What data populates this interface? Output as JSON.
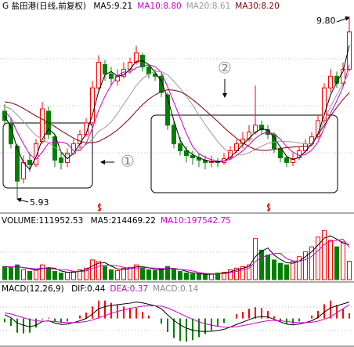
{
  "chart_data": [
    {
      "type": "candlestick",
      "title": "G 盐田港(日线,前复权)",
      "high_label": "9.80",
      "low_label": "5.93",
      "annotations": [
        "①",
        "②"
      ],
      "ylim": [
        5.85,
        9.95
      ],
      "up_color": "#ff0000",
      "down_color": "#008000",
      "open": [
        7.8,
        7.55,
        7.05,
        6.35,
        6.75,
        6.65,
        7.15,
        7.8,
        7.25,
        6.8,
        6.7,
        6.9,
        7.1,
        7.3,
        7.55,
        8.3,
        8.8,
        8.6,
        8.45,
        8.55,
        8.7,
        8.85,
        9.0,
        8.75,
        8.6,
        8.55,
        8.15,
        7.5,
        7.1,
        6.95,
        6.85,
        6.8,
        6.75,
        6.7,
        6.72,
        6.7,
        6.8,
        6.95,
        7.1,
        7.2,
        7.35,
        7.5,
        7.4,
        7.3,
        7.0,
        6.8,
        6.7,
        6.8,
        6.95,
        7.1,
        7.25,
        7.6,
        8.3,
        8.55,
        8.4,
        8.7
      ],
      "high": [
        7.95,
        7.65,
        7.1,
        6.85,
        6.9,
        7.2,
        8.0,
        7.9,
        7.3,
        6.95,
        7.0,
        7.2,
        7.4,
        7.65,
        8.45,
        9.0,
        8.9,
        8.75,
        8.7,
        8.85,
        8.95,
        9.2,
        9.05,
        8.8,
        8.7,
        8.6,
        8.2,
        7.6,
        7.25,
        7.05,
        6.95,
        6.9,
        6.85,
        6.85,
        6.8,
        6.9,
        7.05,
        7.2,
        7.35,
        7.5,
        8.35,
        7.6,
        7.5,
        7.35,
        7.05,
        6.85,
        6.9,
        7.05,
        7.2,
        7.35,
        7.7,
        8.4,
        8.7,
        8.65,
        8.85,
        9.8
      ],
      "low": [
        7.5,
        7.0,
        5.93,
        6.25,
        6.5,
        6.6,
        7.1,
        7.2,
        6.6,
        6.55,
        6.6,
        6.85,
        7.0,
        7.25,
        7.5,
        8.2,
        8.45,
        8.35,
        8.35,
        8.5,
        8.6,
        8.8,
        8.65,
        8.5,
        8.45,
        8.1,
        7.4,
        7.0,
        6.85,
        6.7,
        6.65,
        6.6,
        6.55,
        6.6,
        6.6,
        6.65,
        6.75,
        6.9,
        7.0,
        7.15,
        7.3,
        7.3,
        7.2,
        6.9,
        6.7,
        6.6,
        6.62,
        6.75,
        6.9,
        7.05,
        7.2,
        7.55,
        8.2,
        8.3,
        8.35,
        8.65
      ],
      "close": [
        7.6,
        7.1,
        6.3,
        6.7,
        6.65,
        7.1,
        7.85,
        7.3,
        6.75,
        6.7,
        6.9,
        7.1,
        7.3,
        7.55,
        8.3,
        8.85,
        8.6,
        8.5,
        8.55,
        8.7,
        8.85,
        9.05,
        8.75,
        8.6,
        8.55,
        8.2,
        7.5,
        7.1,
        6.95,
        6.85,
        6.8,
        6.75,
        6.7,
        6.72,
        6.7,
        6.78,
        6.95,
        7.1,
        7.2,
        7.35,
        7.5,
        7.4,
        7.3,
        7.0,
        6.8,
        6.7,
        6.78,
        6.95,
        7.1,
        7.25,
        7.6,
        8.3,
        8.55,
        8.4,
        8.7,
        9.5
      ],
      "series": [
        {
          "name": "MA5:9.21",
          "color": "#000000",
          "values": [
            7.7,
            7.45,
            7.0,
            6.7,
            6.55,
            6.82,
            7.2,
            7.42,
            7.3,
            6.92,
            6.78,
            6.9,
            7.1,
            7.32,
            7.72,
            8.23,
            8.58,
            8.65,
            8.55,
            8.58,
            8.7,
            8.87,
            8.88,
            8.8,
            8.63,
            8.45,
            8.08,
            7.6,
            7.18,
            6.97,
            6.87,
            6.8,
            6.75,
            6.72,
            6.71,
            6.73,
            6.81,
            6.94,
            7.08,
            7.22,
            7.35,
            7.42,
            7.4,
            7.23,
            7.03,
            6.83,
            6.76,
            6.81,
            6.94,
            7.1,
            7.32,
            7.72,
            8.15,
            8.42,
            8.65,
            9.21
          ]
        },
        {
          "name": "MA10:8.80",
          "color": "#cc00cc",
          "values": [
            7.8,
            7.65,
            7.35,
            7.1,
            6.87,
            6.77,
            6.92,
            7.12,
            7.13,
            7.14,
            7.1,
            6.95,
            6.95,
            7.11,
            7.43,
            7.82,
            8.12,
            8.36,
            8.56,
            8.64,
            8.64,
            8.73,
            8.78,
            8.79,
            8.76,
            8.63,
            8.32,
            7.99,
            7.66,
            7.32,
            7.04,
            6.89,
            6.81,
            6.76,
            6.73,
            6.73,
            6.77,
            6.85,
            6.95,
            7.08,
            7.22,
            7.31,
            7.35,
            7.31,
            7.2,
            7.04,
            6.92,
            6.85,
            6.87,
            6.96,
            7.14,
            7.44,
            7.76,
            8.02,
            8.32,
            8.8
          ]
        },
        {
          "name": "MA20:8.61",
          "color": "#999999",
          "values": [
            7.9,
            7.85,
            7.72,
            7.58,
            7.42,
            7.28,
            7.2,
            7.12,
            7.02,
            6.93,
            6.86,
            6.9,
            7.0,
            7.08,
            7.2,
            7.37,
            7.45,
            7.57,
            7.75,
            7.95,
            8.15,
            8.35,
            8.5,
            8.6,
            8.65,
            8.65,
            8.58,
            8.44,
            8.29,
            8.12,
            7.93,
            7.72,
            7.51,
            7.33,
            7.15,
            7.0,
            6.91,
            6.87,
            6.86,
            6.91,
            6.98,
            7.05,
            7.11,
            7.14,
            7.15,
            7.15,
            7.14,
            7.12,
            7.1,
            7.09,
            7.3,
            7.6,
            7.9,
            8.15,
            8.4,
            8.61
          ]
        },
        {
          "name": "MA30:8.20",
          "color": "#800000",
          "values": [
            8.0,
            7.98,
            7.93,
            7.86,
            7.78,
            7.7,
            7.63,
            7.55,
            7.47,
            7.38,
            7.3,
            7.22,
            7.16,
            7.12,
            7.12,
            7.15,
            7.22,
            7.3,
            7.4,
            7.52,
            7.65,
            7.8,
            7.94,
            8.06,
            8.15,
            8.22,
            8.26,
            8.25,
            8.22,
            8.15,
            8.05,
            7.94,
            7.82,
            7.7,
            7.58,
            7.45,
            7.33,
            7.22,
            7.12,
            7.04,
            6.98,
            6.96,
            6.96,
            6.98,
            7.0,
            7.02,
            7.03,
            7.04,
            7.05,
            7.06,
            7.3,
            7.5,
            7.7,
            7.88,
            8.05,
            8.2
          ]
        }
      ]
    },
    {
      "type": "volume",
      "title": "VOLUME:111952.53",
      "ylim": [
        0,
        320000
      ],
      "values": [
        80000,
        70000,
        90000,
        60000,
        50000,
        60000,
        90000,
        70000,
        50000,
        40000,
        45000,
        50000,
        60000,
        70000,
        120000,
        110000,
        80000,
        60000,
        55000,
        70000,
        75000,
        90000,
        70000,
        60000,
        55000,
        65000,
        80000,
        60000,
        50000,
        40000,
        35000,
        35000,
        30000,
        35000,
        40000,
        45000,
        60000,
        70000,
        80000,
        90000,
        250000,
        180000,
        150000,
        120000,
        100000,
        90000,
        110000,
        140000,
        170000,
        200000,
        260000,
        300000,
        240000,
        200000,
        230000,
        111952.53
      ],
      "series": [
        {
          "name": "MA5:214469.22",
          "color": "#000000",
          "values": [
            80000,
            75000,
            80000,
            73000,
            67000,
            57000,
            67000,
            73000,
            70000,
            53000,
            45000,
            45000,
            52000,
            60000,
            83000,
            100000,
            103000,
            83000,
            65000,
            62000,
            67000,
            78000,
            78000,
            73000,
            62000,
            60000,
            67000,
            68000,
            63000,
            50000,
            42000,
            37000,
            33000,
            33000,
            35000,
            40000,
            48000,
            58000,
            70000,
            80000,
            140000,
            173000,
            193000,
            150000,
            123000,
            103000,
            100000,
            113000,
            140000,
            170000,
            210000,
            253000,
            267000,
            247000,
            223000,
            214469.22
          ]
        },
        {
          "name": "MA10:197542.75",
          "color": "#cc00cc",
          "values": [
            80000,
            78000,
            77000,
            74000,
            70000,
            66000,
            70000,
            66000,
            64000,
            60000,
            59000,
            51000,
            49000,
            53000,
            69000,
            82000,
            88000,
            88000,
            85000,
            75000,
            68000,
            70000,
            72000,
            73000,
            70000,
            68000,
            66000,
            64000,
            62000,
            59000,
            53000,
            44000,
            38000,
            35000,
            35000,
            37000,
            42000,
            50000,
            59000,
            69000,
            110000,
            134000,
            150000,
            158000,
            160000,
            128000,
            114000,
            112000,
            122000,
            142000,
            176000,
            214000,
            234000,
            240000,
            246000,
            197542.75
          ]
        }
      ]
    },
    {
      "type": "macd",
      "title": "MACD(12,26,9)",
      "ylim": [
        -0.7,
        0.6
      ],
      "series": [
        {
          "name": "DIF:0.44",
          "color": "#000000",
          "values": [
            0.1,
            0.02,
            -0.12,
            -0.18,
            -0.22,
            -0.18,
            -0.08,
            -0.06,
            -0.12,
            -0.16,
            -0.15,
            -0.11,
            -0.06,
            0.0,
            0.12,
            0.26,
            0.32,
            0.35,
            0.37,
            0.39,
            0.41,
            0.44,
            0.42,
            0.38,
            0.34,
            0.26,
            0.1,
            -0.05,
            -0.17,
            -0.26,
            -0.31,
            -0.34,
            -0.35,
            -0.34,
            -0.32,
            -0.29,
            -0.23,
            -0.16,
            -0.1,
            -0.03,
            0.03,
            0.05,
            0.04,
            -0.02,
            -0.09,
            -0.15,
            -0.17,
            -0.15,
            -0.11,
            -0.06,
            0.03,
            0.17,
            0.28,
            0.34,
            0.39,
            0.44
          ]
        },
        {
          "name": "DEA:0.37",
          "color": "#cc00cc",
          "values": [
            0.15,
            0.12,
            0.07,
            0.02,
            -0.03,
            -0.06,
            -0.07,
            -0.07,
            -0.08,
            -0.1,
            -0.11,
            -0.11,
            -0.1,
            -0.08,
            -0.04,
            0.02,
            0.08,
            0.14,
            0.19,
            0.23,
            0.27,
            0.3,
            0.33,
            0.34,
            0.34,
            0.33,
            0.28,
            0.21,
            0.13,
            0.05,
            -0.02,
            -0.09,
            -0.14,
            -0.18,
            -0.21,
            -0.23,
            -0.23,
            -0.22,
            -0.19,
            -0.16,
            -0.12,
            -0.09,
            -0.06,
            -0.05,
            -0.06,
            -0.08,
            -0.1,
            -0.11,
            -0.11,
            -0.1,
            -0.07,
            -0.02,
            0.04,
            0.16,
            0.26,
            0.37
          ]
        },
        {
          "name": "MACD:0.14",
          "color": "#888888",
          "values": [
            -0.1,
            -0.2,
            -0.38,
            -0.4,
            -0.38,
            -0.24,
            -0.02,
            0.02,
            -0.08,
            -0.12,
            -0.08,
            0.0,
            0.08,
            0.16,
            0.32,
            0.48,
            0.48,
            0.42,
            0.36,
            0.32,
            0.28,
            0.28,
            0.18,
            0.08,
            0.0,
            -0.14,
            -0.36,
            -0.52,
            -0.6,
            -0.62,
            -0.58,
            -0.5,
            -0.42,
            -0.32,
            -0.22,
            -0.12,
            0.0,
            0.12,
            0.18,
            0.26,
            0.3,
            0.28,
            0.2,
            0.06,
            -0.06,
            -0.14,
            -0.14,
            -0.08,
            0.0,
            0.08,
            0.2,
            0.38,
            0.48,
            0.36,
            0.26,
            0.14
          ]
        }
      ]
    }
  ]
}
